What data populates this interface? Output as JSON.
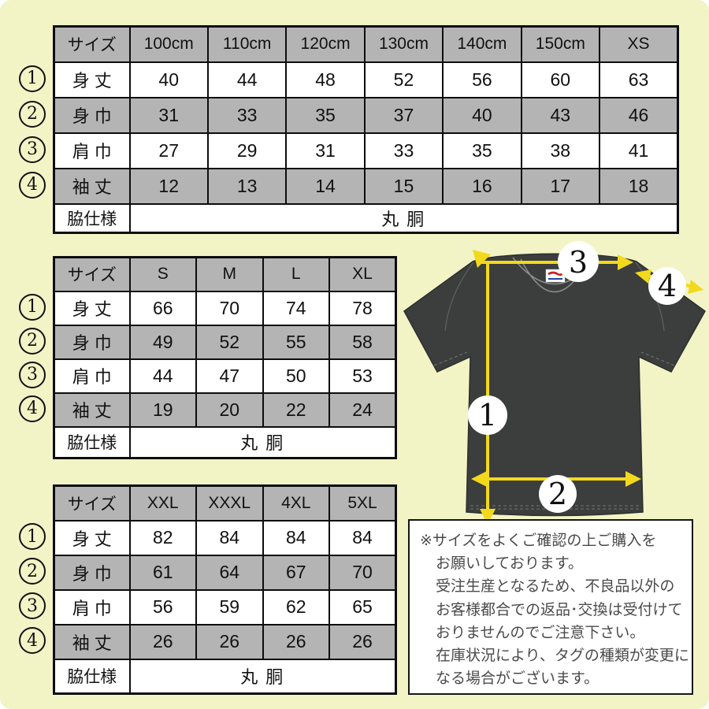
{
  "colors": {
    "background": "#f2f4c6",
    "table_gray": "#b4b4b4",
    "shirt": "#3b3e3c",
    "arrow_yellow": "#f3d91c",
    "note_text": "#4a4a4a"
  },
  "tables": [
    {
      "name": "kids-sizes",
      "header": [
        "サイズ",
        "100cm",
        "110cm",
        "120cm",
        "130cm",
        "140cm",
        "150cm",
        "XS"
      ],
      "rows": [
        {
          "marker": "1",
          "label": "身 丈",
          "values": [
            "40",
            "44",
            "48",
            "52",
            "56",
            "60",
            "63"
          ]
        },
        {
          "marker": "2",
          "label": "身 巾",
          "values": [
            "31",
            "33",
            "35",
            "37",
            "40",
            "43",
            "46"
          ]
        },
        {
          "marker": "3",
          "label": "肩 巾",
          "values": [
            "27",
            "29",
            "31",
            "33",
            "35",
            "38",
            "41"
          ]
        },
        {
          "marker": "4",
          "label": "袖 丈",
          "values": [
            "12",
            "13",
            "14",
            "15",
            "16",
            "17",
            "18"
          ]
        }
      ],
      "footer": {
        "label": "脇仕様",
        "value": "丸 胴"
      }
    },
    {
      "name": "adult-sizes",
      "header": [
        "サイズ",
        "S",
        "M",
        "L",
        "XL"
      ],
      "rows": [
        {
          "marker": "1",
          "label": "身 丈",
          "values": [
            "66",
            "70",
            "74",
            "78"
          ]
        },
        {
          "marker": "2",
          "label": "身 巾",
          "values": [
            "49",
            "52",
            "55",
            "58"
          ]
        },
        {
          "marker": "3",
          "label": "肩 巾",
          "values": [
            "44",
            "47",
            "50",
            "53"
          ]
        },
        {
          "marker": "4",
          "label": "袖 丈",
          "values": [
            "19",
            "20",
            "22",
            "24"
          ]
        }
      ],
      "footer": {
        "label": "脇仕様",
        "value": "丸 胴"
      }
    },
    {
      "name": "plus-sizes",
      "header": [
        "サイズ",
        "XXL",
        "XXXL",
        "4XL",
        "5XL"
      ],
      "rows": [
        {
          "marker": "1",
          "label": "身 丈",
          "values": [
            "82",
            "84",
            "84",
            "84"
          ]
        },
        {
          "marker": "2",
          "label": "身 巾",
          "values": [
            "61",
            "64",
            "67",
            "70"
          ]
        },
        {
          "marker": "3",
          "label": "肩 巾",
          "values": [
            "56",
            "59",
            "62",
            "65"
          ]
        },
        {
          "marker": "4",
          "label": "袖 丈",
          "values": [
            "26",
            "26",
            "26",
            "26"
          ]
        }
      ],
      "footer": {
        "label": "脇仕様",
        "value": "丸 胴"
      }
    }
  ],
  "diagram": {
    "markers": [
      "1",
      "2",
      "3",
      "4"
    ]
  },
  "note": {
    "lines": [
      "※サイズをよくご確認の上ご購入を",
      "お願いしております。",
      "受注生産となるため、不良品以外の",
      "お客様都合での返品･交換は受付けて",
      "おりませんのでご注意下さい。",
      "在庫状況により、タグの種類が変更に",
      "なる場合がございます。"
    ]
  }
}
